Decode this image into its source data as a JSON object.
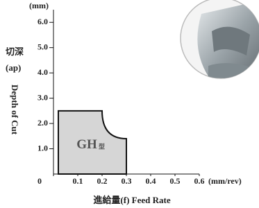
{
  "chart_data": {
    "type": "region",
    "y_unit": "(mm)",
    "y_label_zh": "切深",
    "y_label_sym": "(ap)",
    "y_label": "Depth of Cut",
    "x_label": "進給量(f) Feed Rate",
    "x_unit": "(mm/rev)",
    "region_label": "GH",
    "region_suffix": "型",
    "x": [
      0.02,
      0.02,
      0.2,
      0.3,
      0.3
    ],
    "y": [
      0,
      2.5,
      2.5,
      1.4,
      0
    ],
    "color": "#d6d6d6",
    "xlim": [
      0,
      0.6
    ],
    "xticks": [
      0,
      0.1,
      0.2,
      0.3,
      0.4,
      0.5,
      0.6
    ],
    "ylim": [
      0,
      6.5
    ],
    "yticks": [
      {
        "value": 1,
        "label": "1.0"
      },
      {
        "value": 2,
        "label": "2.0"
      },
      {
        "value": 3,
        "label": "3.0"
      },
      {
        "value": 4,
        "label": "4.0"
      },
      {
        "value": 5,
        "label": "5.0"
      },
      {
        "value": 6,
        "label": "6.0"
      }
    ]
  }
}
